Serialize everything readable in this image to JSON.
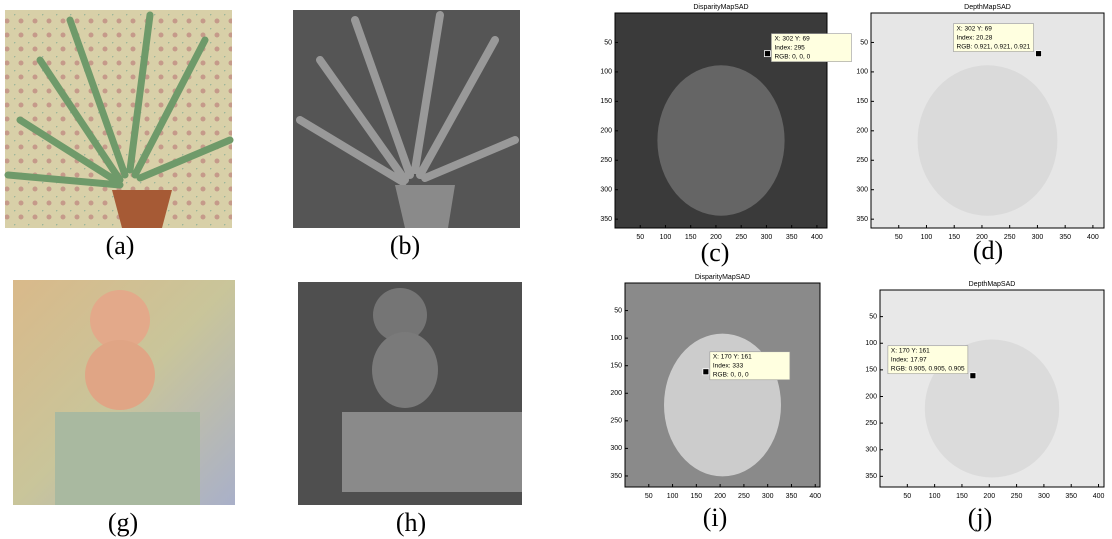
{
  "figure": {
    "panels": [
      {
        "caption": "(a)"
      },
      {
        "caption": "(b)"
      },
      {
        "caption": "(c)",
        "title": "DisparityMapSAD",
        "xlim": [
          0,
          420
        ],
        "ylim": [
          0,
          365
        ],
        "xticks": [
          50,
          100,
          150,
          200,
          250,
          300,
          350,
          400
        ],
        "yticks": [
          50,
          100,
          150,
          200,
          250,
          300,
          350
        ],
        "point": [
          302,
          69
        ],
        "tip": [
          "X: 302 Y: 69",
          "Index: 295",
          "RGB: 0, 0, 0"
        ]
      },
      {
        "caption": "(d)",
        "title": "DepthMapSAD",
        "xlim": [
          0,
          420
        ],
        "ylim": [
          0,
          365
        ],
        "xticks": [
          50,
          100,
          150,
          200,
          250,
          300,
          350,
          400
        ],
        "yticks": [
          50,
          100,
          150,
          200,
          250,
          300,
          350
        ],
        "point": [
          302,
          69
        ],
        "tip": [
          "X: 302 Y: 69",
          "Index: 20.28",
          "RGB: 0.921, 0.921, 0.921"
        ]
      },
      {
        "caption": "(g)"
      },
      {
        "caption": "(h)"
      },
      {
        "caption": "(i)",
        "title": "DisparityMapSAD",
        "xlim": [
          0,
          410
        ],
        "ylim": [
          0,
          370
        ],
        "xticks": [
          50,
          100,
          150,
          200,
          250,
          300,
          350,
          400
        ],
        "yticks": [
          50,
          100,
          150,
          200,
          250,
          300,
          350
        ],
        "point": [
          170,
          161
        ],
        "tip": [
          "X: 170 Y: 161",
          "Index: 333",
          "RGB: 0, 0, 0"
        ]
      },
      {
        "caption": "(j)",
        "title": "DepthMapSAD",
        "xlim": [
          0,
          410
        ],
        "ylim": [
          0,
          370
        ],
        "xticks": [
          50,
          100,
          150,
          200,
          250,
          300,
          350,
          400
        ],
        "yticks": [
          50,
          100,
          150,
          200,
          250,
          300,
          350
        ],
        "point": [
          170,
          161
        ],
        "tip": [
          "X: 170 Y: 161",
          "Index: 17.97",
          "RGB: 0.905, 0.905, 0.905"
        ]
      }
    ]
  }
}
